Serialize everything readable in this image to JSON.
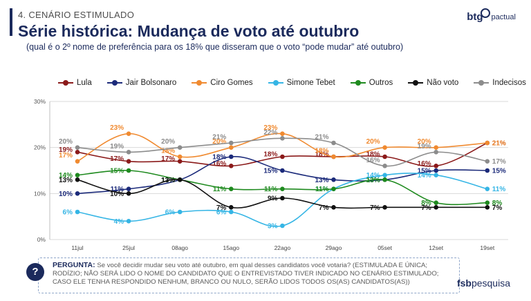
{
  "header": {
    "section": "4. CENÁRIO ESTIMULADO",
    "title": "Série histórica: Mudança de voto até outubro",
    "subtitle": "(qual é o 2º nome de preferência para os 18% que disseram que o voto “pode mudar” até outubro)"
  },
  "brand": {
    "part1": "btg",
    "part2": "pactual"
  },
  "question": {
    "label": "PERGUNTA:",
    "text": "Se você decidir mudar seu voto até outubro, em qual desses candidatos você votaria? (ESTIMULADA E ÚNICA; RODÍZIO; NÃO SERÁ LIDO O NOME DO CANDIDATO QUE O ENTREVISTADO TIVER INDICADO NO CENÁRIO ESTIMULADO; CASO ELE TENHA RESPONDIDO NENHUM, BRANCO OU NULO, SERÃO LIDOS TODOS OS(AS) CANDIDATOS(AS))"
  },
  "footer": {
    "part1": "fsb",
    "part2": "pesquisa"
  },
  "chart_data": {
    "type": "line",
    "x": [
      "11jul",
      "25jul",
      "08ago",
      "15ago",
      "22ago",
      "29ago",
      "05set",
      "12set",
      "19set"
    ],
    "yticks": [
      "0%",
      "10%",
      "20%",
      "30%"
    ],
    "ylim": [
      0,
      30
    ],
    "legend_position": "top",
    "series": [
      {
        "name": "Lula",
        "color": "#8b1a1a",
        "values": [
          19,
          17,
          17,
          16,
          18,
          18,
          18,
          16,
          21
        ]
      },
      {
        "name": "Jair Bolsonaro",
        "color": "#1b2a7a",
        "values": [
          10,
          11,
          13,
          18,
          15,
          13,
          13,
          15,
          15
        ]
      },
      {
        "name": "Ciro Gomes",
        "color": "#f08a30",
        "values": [
          17,
          23,
          18,
          20,
          23,
          18,
          20,
          20,
          21
        ]
      },
      {
        "name": "Simone Tebet",
        "color": "#35b5e5",
        "values": [
          6,
          4,
          6,
          6,
          3,
          11,
          14,
          14,
          11
        ]
      },
      {
        "name": "Outros",
        "color": "#1e8a1e",
        "values": [
          14,
          15,
          13,
          11,
          11,
          11,
          13,
          8,
          8
        ]
      },
      {
        "name": "Não voto",
        "color": "#111111",
        "values": [
          13,
          10,
          13,
          7,
          9,
          7,
          7,
          7,
          7
        ]
      },
      {
        "name": "Indecisos",
        "color": "#8c8c8c",
        "values": [
          20,
          19,
          20,
          21,
          22,
          21,
          16,
          19,
          17
        ]
      }
    ]
  }
}
